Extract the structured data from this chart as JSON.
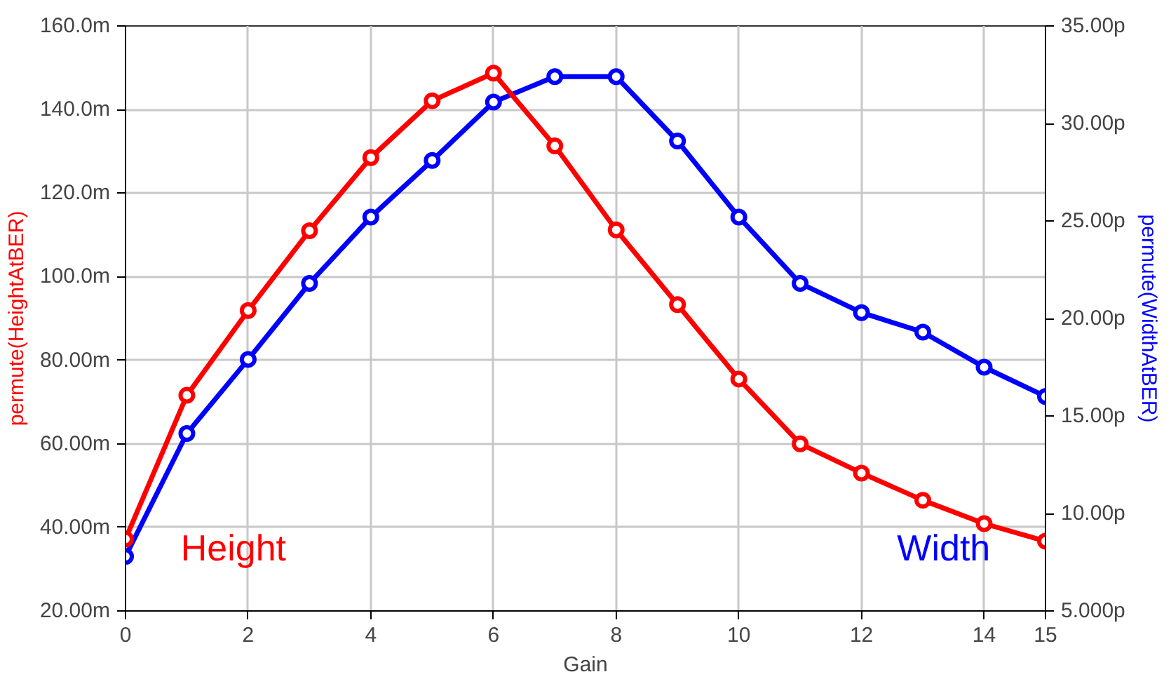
{
  "chart_data": {
    "type": "line",
    "xlabel": "Gain",
    "ylabel": "permute(HeightAtBER)",
    "y2label": "permute(WidthAtBER)",
    "x": [
      0,
      1,
      2,
      3,
      4,
      5,
      6,
      7,
      8,
      9,
      10,
      11,
      12,
      13,
      14,
      15
    ],
    "series": [
      {
        "name": "Height",
        "color": "#ff0000",
        "values": [
          37.2,
          71.6,
          91.9,
          111,
          128.5,
          142.1,
          148.7,
          131.3,
          111.2,
          93.3,
          75.5,
          60.0,
          53.0,
          46.5,
          40.9,
          36.7
        ]
      },
      {
        "name": "Width",
        "color": "#0000ff",
        "axis": "y2",
        "values": [
          7.8,
          14.1,
          17.9,
          21.8,
          25.2,
          28.1,
          31.1,
          32.4,
          32.4,
          29.1,
          25.2,
          21.8,
          20.3,
          19.3,
          17.5,
          16.0
        ]
      }
    ],
    "xlim": [
      0,
      15
    ],
    "xticks": [
      0,
      2,
      4,
      6,
      8,
      10,
      12,
      14,
      15
    ],
    "ylim": [
      20,
      160
    ],
    "yticks": [
      {
        "value": 20,
        "label": "20.00m"
      },
      {
        "value": 40,
        "label": "40.00m"
      },
      {
        "value": 60,
        "label": "60.00m"
      },
      {
        "value": 80,
        "label": "80.00m"
      },
      {
        "value": 100,
        "label": "100.0m"
      },
      {
        "value": 120,
        "label": "120.0m"
      },
      {
        "value": 140,
        "label": "140.0m"
      },
      {
        "value": 160,
        "label": "160.0m"
      }
    ],
    "y2lim": [
      5,
      35
    ],
    "y2ticks": [
      {
        "value": 5,
        "label": "5.000p"
      },
      {
        "value": 10,
        "label": "10.00p"
      },
      {
        "value": 15,
        "label": "15.00p"
      },
      {
        "value": 20,
        "label": "20.00p"
      },
      {
        "value": 25,
        "label": "25.00p"
      },
      {
        "value": 30,
        "label": "30.00p"
      },
      {
        "value": 35,
        "label": "35.00p"
      }
    ],
    "grid": true,
    "legend": false,
    "marker": "circle",
    "line_style": "solid"
  }
}
